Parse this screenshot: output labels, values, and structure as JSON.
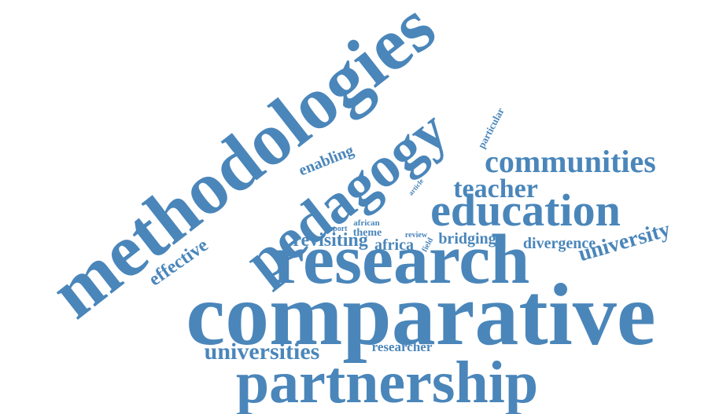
{
  "word_cloud": {
    "color": "#4a86ba",
    "words": {
      "methodologies": "methodologies",
      "pedagogy": "pedagogy",
      "communities": "communities",
      "teacher": "teacher",
      "education": "education",
      "research": "research",
      "comparative": "comparative",
      "partnership": "partnership",
      "universities": "universities",
      "researcher": "researcher",
      "university": "university",
      "divergence": "divergence",
      "bridging": "bridging",
      "revisiting": "revisiting",
      "africa": "africa",
      "theme": "theme",
      "african": "african",
      "report": "report",
      "review": "review",
      "field": "field",
      "article": "article",
      "particular": "particular",
      "enabling": "enabling",
      "effective": "effective"
    }
  }
}
